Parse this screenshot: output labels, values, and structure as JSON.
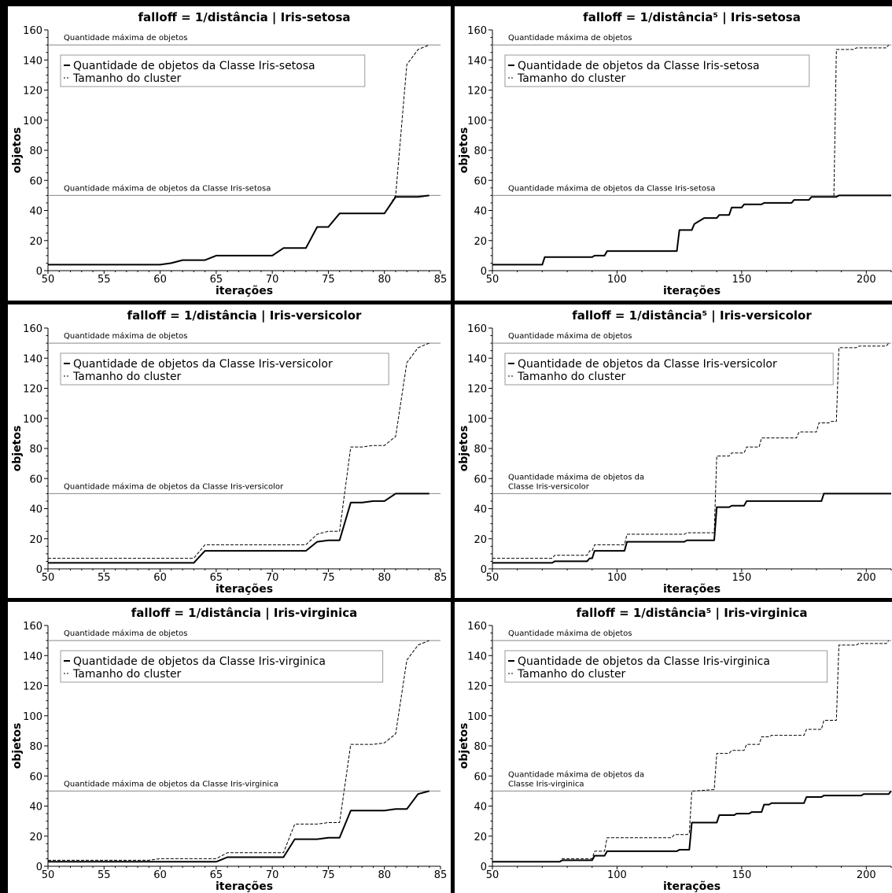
{
  "chart_data": [
    {
      "type": "line",
      "title": "falloff = 1/distância | Iris-setosa",
      "xlabel": "iterações",
      "ylabel": "objetos",
      "xlim": [
        50,
        85
      ],
      "ylim": [
        0,
        160
      ],
      "xticks": [
        50,
        55,
        60,
        65,
        70,
        75,
        80,
        85
      ],
      "yticks": [
        0,
        20,
        40,
        60,
        80,
        100,
        120,
        140,
        160
      ],
      "legend": "top-left",
      "reference_lines": [
        {
          "y": 150,
          "label": "Quantidade máxima de objetos"
        },
        {
          "y": 50,
          "label": "Quantidade máxima de objetos da Classe Iris-setosa"
        }
      ],
      "series": [
        {
          "name": "Quantidade de objetos da Classe Iris-setosa",
          "style": "solid",
          "x": [
            50,
            60,
            61,
            62,
            64,
            65,
            70,
            71,
            73,
            74,
            75,
            76,
            80,
            81,
            83,
            84
          ],
          "y": [
            4,
            4,
            5,
            7,
            7,
            10,
            10,
            15,
            15,
            29,
            29,
            38,
            38,
            49,
            49,
            50
          ]
        },
        {
          "name": "Tamanho do cluster",
          "style": "dashed",
          "x": [
            50,
            60,
            61,
            62,
            64,
            65,
            70,
            71,
            73,
            74,
            75,
            76,
            80,
            81,
            82,
            83,
            84
          ],
          "y": [
            4,
            4,
            5,
            7,
            7,
            10,
            10,
            15,
            15,
            29,
            29,
            38,
            38,
            50,
            137,
            147,
            150
          ]
        }
      ]
    },
    {
      "type": "line",
      "title": "falloff = 1/distância⁵ | Iris-setosa",
      "xlabel": "iterações",
      "ylabel": "objetos",
      "xlim": [
        50,
        210
      ],
      "ylim": [
        0,
        160
      ],
      "xticks": [
        50,
        100,
        150,
        200
      ],
      "yticks": [
        0,
        20,
        40,
        60,
        80,
        100,
        120,
        140,
        160
      ],
      "legend": "top-left",
      "reference_lines": [
        {
          "y": 150,
          "label": "Quantidade máxima de objetos"
        },
        {
          "y": 50,
          "label": "Quantidade máxima de objetos da Classe Iris-setosa"
        }
      ],
      "series": [
        {
          "name": "Quantidade de objetos da Classe Iris-setosa",
          "style": "solid",
          "x": [
            50,
            70,
            71,
            90,
            91,
            95,
            96,
            124,
            125,
            130,
            131,
            133,
            135,
            140,
            141,
            145,
            146,
            150,
            151,
            158,
            159,
            170,
            171,
            177,
            178,
            188,
            189,
            210
          ],
          "y": [
            4,
            4,
            9,
            9,
            10,
            10,
            13,
            13,
            27,
            27,
            31,
            33,
            35,
            35,
            37,
            37,
            42,
            42,
            44,
            44,
            45,
            45,
            47,
            47,
            49,
            49,
            50,
            50
          ]
        },
        {
          "name": "Tamanho do cluster",
          "style": "dashed",
          "x": [
            50,
            70,
            71,
            90,
            91,
            95,
            96,
            124,
            125,
            130,
            131,
            133,
            135,
            140,
            141,
            145,
            146,
            150,
            151,
            158,
            159,
            170,
            171,
            177,
            178,
            187,
            188,
            195,
            196,
            208,
            209
          ],
          "y": [
            4,
            4,
            9,
            9,
            10,
            10,
            13,
            13,
            27,
            27,
            31,
            33,
            35,
            35,
            37,
            37,
            42,
            42,
            44,
            44,
            45,
            45,
            47,
            47,
            49,
            49,
            147,
            147,
            148,
            148,
            150
          ]
        }
      ]
    },
    {
      "type": "line",
      "title": "falloff = 1/distância | Iris-versicolor",
      "xlabel": "iterações",
      "ylabel": "objetos",
      "xlim": [
        50,
        85
      ],
      "ylim": [
        0,
        160
      ],
      "xticks": [
        50,
        55,
        60,
        65,
        70,
        75,
        80,
        85
      ],
      "yticks": [
        0,
        20,
        40,
        60,
        80,
        100,
        120,
        140,
        160
      ],
      "legend": "top-left",
      "reference_lines": [
        {
          "y": 150,
          "label": "Quantidade máxima de objetos"
        },
        {
          "y": 50,
          "label": "Quantidade máxima de objetos da Classe Iris-versicolor"
        }
      ],
      "series": [
        {
          "name": "Quantidade de objetos da Classe Iris-versicolor",
          "style": "solid",
          "x": [
            50,
            63,
            64,
            73,
            74,
            75,
            76,
            77,
            78,
            79,
            80,
            81,
            84
          ],
          "y": [
            4,
            4,
            12,
            12,
            18,
            19,
            19,
            44,
            44,
            45,
            45,
            50,
            50
          ]
        },
        {
          "name": "Tamanho do cluster",
          "style": "dashed",
          "x": [
            50,
            63,
            64,
            73,
            74,
            75,
            76,
            77,
            78,
            79,
            80,
            81,
            82,
            83,
            84
          ],
          "y": [
            7,
            7,
            16,
            16,
            23,
            25,
            25,
            81,
            81,
            82,
            82,
            88,
            137,
            147,
            150
          ]
        }
      ]
    },
    {
      "type": "line",
      "title": "falloff = 1/distância⁵ | Iris-versicolor",
      "xlabel": "iterações",
      "ylabel": "objetos",
      "xlim": [
        50,
        210
      ],
      "ylim": [
        0,
        160
      ],
      "xticks": [
        50,
        100,
        150,
        200
      ],
      "yticks": [
        0,
        20,
        40,
        60,
        80,
        100,
        120,
        140,
        160
      ],
      "legend": "top-left",
      "reference_lines": [
        {
          "y": 150,
          "label": "Quantidade máxima de objetos"
        },
        {
          "y": 50,
          "label": "Quantidade máxima de objetos da\nClasse Iris-versicolor"
        }
      ],
      "series": [
        {
          "name": "Quantidade de objetos da Classe Iris-versicolor",
          "style": "solid",
          "x": [
            50,
            74,
            75,
            88,
            89,
            90,
            91,
            103,
            104,
            127,
            128,
            139,
            140,
            145,
            146,
            151,
            152,
            182,
            183,
            210
          ],
          "y": [
            4,
            4,
            5,
            5,
            7,
            7,
            12,
            12,
            18,
            18,
            19,
            19,
            41,
            41,
            42,
            42,
            45,
            45,
            50,
            50
          ]
        },
        {
          "name": "Tamanho do cluster",
          "style": "dashed",
          "x": [
            50,
            74,
            75,
            88,
            89,
            90,
            91,
            103,
            104,
            127,
            128,
            139,
            140,
            145,
            146,
            151,
            152,
            157,
            158,
            172,
            173,
            180,
            181,
            185,
            186,
            188,
            189,
            196,
            197,
            208,
            209
          ],
          "y": [
            7,
            7,
            9,
            9,
            12,
            12,
            16,
            16,
            23,
            23,
            24,
            24,
            75,
            75,
            77,
            77,
            81,
            81,
            87,
            87,
            91,
            91,
            97,
            97,
            98,
            98,
            147,
            147,
            148,
            148,
            150
          ]
        }
      ]
    },
    {
      "type": "line",
      "title": "falloff = 1/distância | Iris-virginica",
      "xlabel": "iterações",
      "ylabel": "objetos",
      "xlim": [
        50,
        85
      ],
      "ylim": [
        0,
        160
      ],
      "xticks": [
        50,
        55,
        60,
        65,
        70,
        75,
        80,
        85
      ],
      "yticks": [
        0,
        20,
        40,
        60,
        80,
        100,
        120,
        140,
        160
      ],
      "legend": "top-left",
      "reference_lines": [
        {
          "y": 150,
          "label": "Quantidade máxima de objetos"
        },
        {
          "y": 50,
          "label": "Quantidade máxima de objetos da Classe Iris-virginica"
        }
      ],
      "series": [
        {
          "name": "Quantidade de objetos da Classe Iris-virginica",
          "style": "solid",
          "x": [
            50,
            65,
            66,
            71,
            72,
            74,
            75,
            76,
            77,
            80,
            81,
            82,
            83,
            84
          ],
          "y": [
            3,
            3,
            6,
            6,
            18,
            18,
            19,
            19,
            37,
            37,
            38,
            38,
            48,
            50
          ]
        },
        {
          "name": "Tamanho do cluster",
          "style": "dashed",
          "x": [
            50,
            59,
            60,
            65,
            66,
            71,
            72,
            74,
            75,
            76,
            77,
            79,
            80,
            81,
            82,
            83,
            84
          ],
          "y": [
            4,
            4,
            5,
            5,
            9,
            9,
            28,
            28,
            29,
            29,
            81,
            81,
            82,
            88,
            137,
            147,
            150
          ]
        }
      ]
    },
    {
      "type": "line",
      "title": "falloff = 1/distância⁵ | Iris-virginica",
      "xlabel": "iterações",
      "ylabel": "objetos",
      "xlim": [
        50,
        210
      ],
      "ylim": [
        0,
        160
      ],
      "xticks": [
        50,
        100,
        150,
        200
      ],
      "yticks": [
        0,
        20,
        40,
        60,
        80,
        100,
        120,
        140,
        160
      ],
      "legend": "top-left",
      "reference_lines": [
        {
          "y": 150,
          "label": "Quantidade máxima de objetos"
        },
        {
          "y": 50,
          "label": "Quantidade máxima de objetos da\nClasse Iris-virginica"
        }
      ],
      "series": [
        {
          "name": "Quantidade de objetos da Classe Iris-virginica",
          "style": "solid",
          "x": [
            50,
            77,
            78,
            90,
            91,
            95,
            96,
            124,
            125,
            129,
            130,
            140,
            141,
            147,
            148,
            153,
            154,
            158,
            159,
            161,
            162,
            175,
            176,
            182,
            183,
            198,
            199,
            209,
            210
          ],
          "y": [
            3,
            3,
            4,
            4,
            7,
            7,
            10,
            10,
            11,
            11,
            29,
            29,
            34,
            34,
            35,
            35,
            36,
            36,
            41,
            41,
            42,
            42,
            46,
            46,
            47,
            47,
            48,
            48,
            50
          ]
        },
        {
          "name": "Tamanho do cluster",
          "style": "dashed",
          "x": [
            50,
            77,
            78,
            90,
            91,
            95,
            96,
            122,
            123,
            128,
            129,
            130,
            131,
            139,
            140,
            145,
            146,
            151,
            152,
            157,
            158,
            161,
            162,
            175,
            176,
            182,
            183,
            188,
            189,
            196,
            197,
            208,
            209
          ],
          "y": [
            3,
            3,
            5,
            5,
            10,
            10,
            19,
            19,
            21,
            21,
            22,
            50,
            50,
            51,
            75,
            75,
            77,
            77,
            81,
            81,
            86,
            86,
            87,
            87,
            91,
            91,
            97,
            97,
            147,
            147,
            148,
            148,
            150
          ]
        }
      ]
    }
  ]
}
